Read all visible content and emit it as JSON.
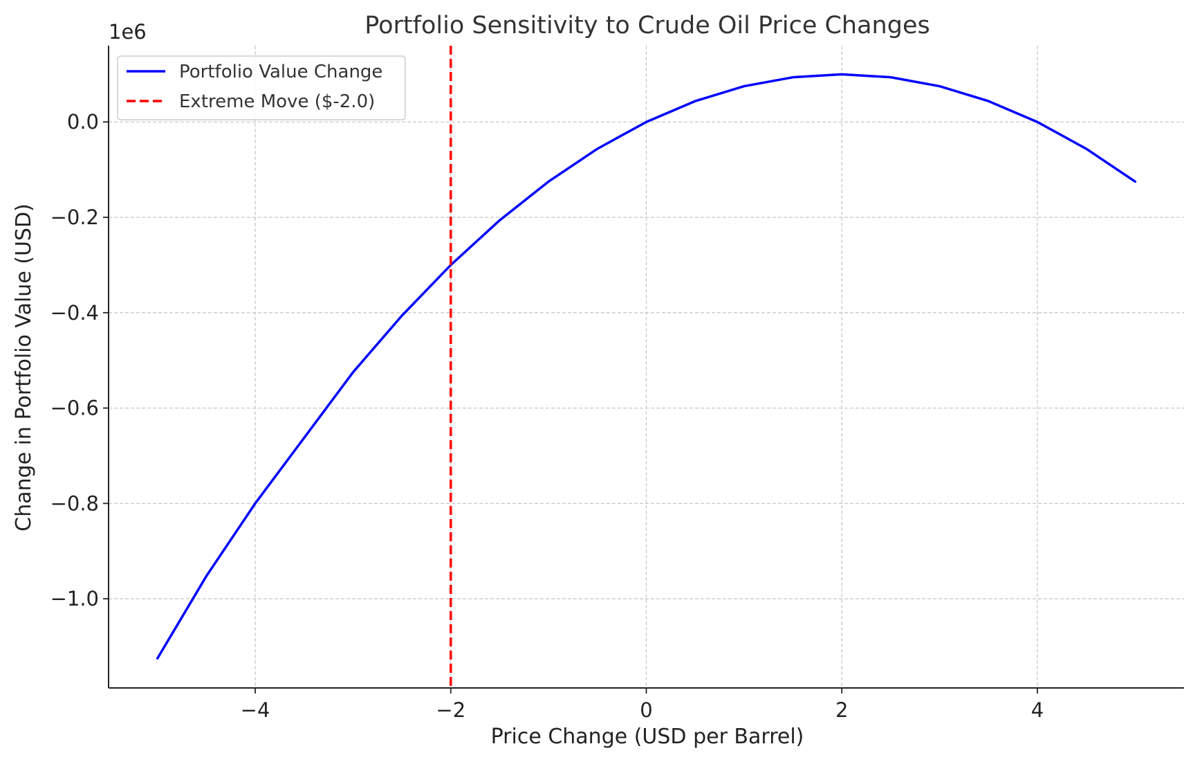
{
  "chart_data": {
    "type": "line",
    "title": "Portfolio Sensitivity to Crude Oil Price Changes",
    "xlabel": "Price Change (USD per Barrel)",
    "ylabel": "Change in Portfolio Value (USD)",
    "y_offset_label": "1e6",
    "xlim": [
      -5.5,
      5.5
    ],
    "ylim": [
      -1.187,
      0.16
    ],
    "x_ticks": [
      -4,
      -2,
      0,
      2,
      4
    ],
    "x_tick_labels": [
      "−4",
      "−2",
      "0",
      "2",
      "4"
    ],
    "y_ticks": [
      0.0,
      -0.2,
      -0.4,
      -0.6,
      -0.8,
      -1.0
    ],
    "y_tick_labels": [
      "0.0",
      "−0.2",
      "−0.4",
      "−0.6",
      "−0.8",
      "−1.0"
    ],
    "grid": true,
    "legend_position": "upper-left",
    "series": [
      {
        "name": "Portfolio Value Change",
        "style": "solid",
        "color": "#0000ff",
        "x": [
          -5,
          -4.5,
          -4,
          -3.5,
          -3,
          -2.5,
          -2,
          -1.5,
          -1,
          -0.5,
          0,
          0.5,
          1,
          1.5,
          2,
          2.5,
          3,
          3.5,
          4,
          4.5,
          5
        ],
        "y": [
          -1.125,
          -0.9525,
          -0.8,
          -0.6625,
          -0.525,
          -0.40625,
          -0.3,
          -0.20625,
          -0.125,
          -0.05625,
          0.0,
          0.04375,
          0.075,
          0.09375,
          0.1,
          0.09375,
          0.075,
          0.04375,
          0.0,
          -0.05625,
          -0.125
        ]
      },
      {
        "name": "Extreme Move ($-2.0)",
        "style": "dashed",
        "color": "#ff0000",
        "vertical_line_x": -2.0
      }
    ]
  }
}
